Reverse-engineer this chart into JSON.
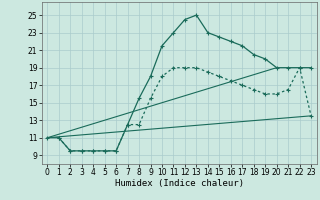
{
  "xlabel": "Humidex (Indice chaleur)",
  "xlim": [
    -0.5,
    23.5
  ],
  "ylim": [
    8.0,
    26.5
  ],
  "xticks": [
    0,
    1,
    2,
    3,
    4,
    5,
    6,
    7,
    8,
    9,
    10,
    11,
    12,
    13,
    14,
    15,
    16,
    17,
    18,
    19,
    20,
    21,
    22,
    23
  ],
  "yticks": [
    9,
    11,
    13,
    15,
    17,
    19,
    21,
    23,
    25
  ],
  "bg_color": "#cce8e0",
  "grid_color": "#aacccc",
  "line_color": "#1a6b5a",
  "line1_x": [
    0,
    1,
    2,
    3,
    4,
    5,
    6,
    7,
    8,
    9,
    10,
    11,
    12,
    13,
    14,
    15,
    16,
    17,
    18,
    19,
    20,
    21,
    22,
    23
  ],
  "line1_y": [
    11,
    11,
    9.5,
    9.5,
    9.5,
    9.5,
    9.5,
    12.5,
    15.5,
    18,
    21.5,
    23,
    24.5,
    25,
    23,
    22.5,
    22,
    21.5,
    20.5,
    20,
    19,
    19,
    19,
    19
  ],
  "line2_x": [
    1,
    2,
    3,
    4,
    5,
    6,
    7,
    8,
    9,
    10,
    11,
    12,
    13,
    14,
    15,
    16,
    17,
    18,
    19,
    20,
    21,
    22,
    23
  ],
  "line2_y": [
    11,
    9.5,
    9.5,
    9.5,
    9.5,
    9.5,
    12.5,
    12.5,
    15.5,
    18,
    19,
    19,
    19,
    18.5,
    18,
    17.5,
    17,
    16.5,
    16,
    16,
    16.5,
    19,
    13.5
  ],
  "line3_x": [
    0,
    20
  ],
  "line3_y": [
    11,
    19
  ],
  "line4_x": [
    0,
    23
  ],
  "line4_y": [
    11,
    13.5
  ]
}
